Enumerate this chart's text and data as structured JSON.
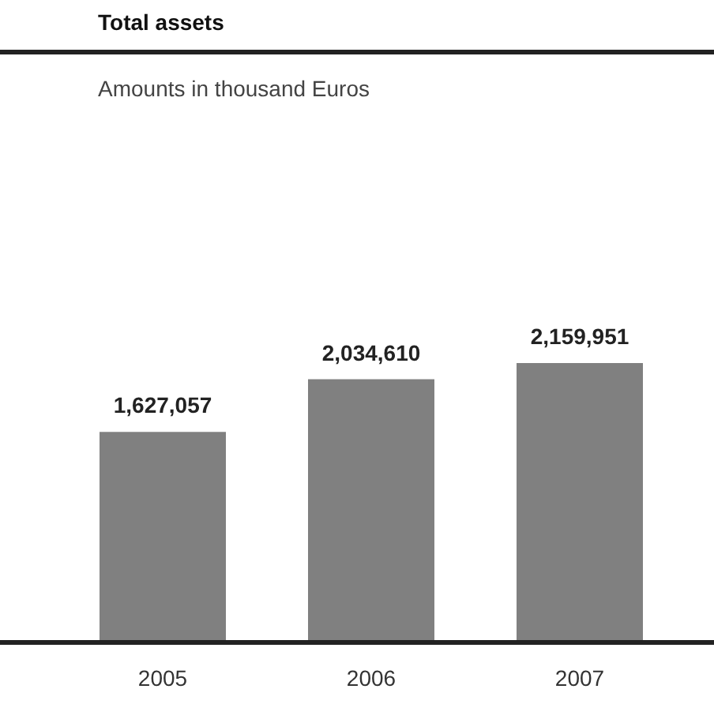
{
  "chart_data": {
    "type": "bar",
    "title": "Total assets",
    "subtitle": "Amounts in thousand Euros",
    "categories": [
      "2005",
      "2006",
      "2007"
    ],
    "values": [
      1627057,
      2034610,
      2159951
    ],
    "color": "#808080",
    "value_labels": [
      "1,627,057",
      "2,034,610",
      "2,159,951"
    ],
    "tick_labels": "x"
  }
}
